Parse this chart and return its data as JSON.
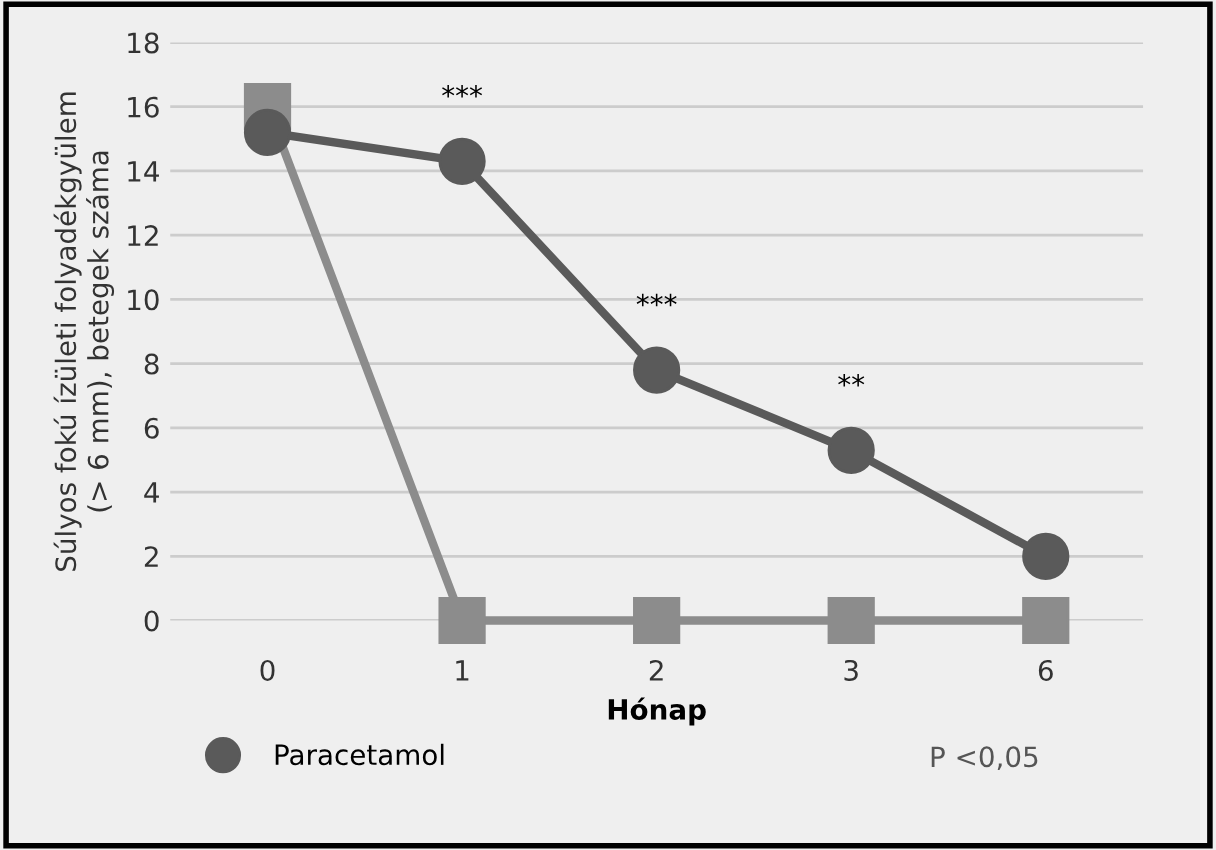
{
  "chart_data": {
    "type": "line",
    "xlabel": "Hónap",
    "ylabel": "Súlyos fokú ízületi folyadékgyülem\n(> 6 mm), betegek száma",
    "categories": [
      "0",
      "1",
      "2",
      "3",
      "6"
    ],
    "series": [
      {
        "color": "#8c8c8c",
        "marker": "square",
        "values": [
          16,
          0,
          0,
          0,
          0
        ]
      },
      {
        "name": "Paracetamol",
        "color": "#5a5a5a",
        "marker": "circle",
        "values": [
          15.2,
          14.3,
          7.8,
          5.3,
          2.0
        ]
      }
    ],
    "ylim": [
      0,
      18
    ],
    "yticks": [
      0,
      2,
      4,
      6,
      8,
      10,
      12,
      14,
      16,
      18
    ],
    "grid": "y",
    "legend": "bottom",
    "annotations": [
      {
        "text": "***",
        "x": "1",
        "y": 14.3
      },
      {
        "text": "***",
        "x": "2",
        "y": 7.8
      },
      {
        "text": "**",
        "x": "3",
        "y": 5.3
      },
      "P <0,05"
    ]
  }
}
